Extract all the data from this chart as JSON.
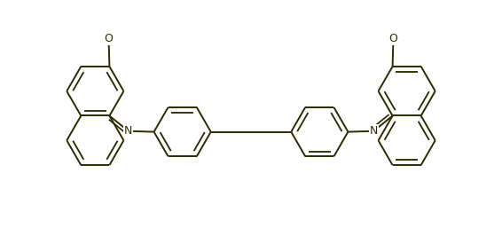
{
  "bg_color": "#ffffff",
  "line_color": "#2b2b00",
  "line_width": 1.4,
  "figsize": [
    5.66,
    2.84
  ],
  "dpi": 100,
  "R": 0.195,
  "label_N": "N",
  "label_O": "O"
}
